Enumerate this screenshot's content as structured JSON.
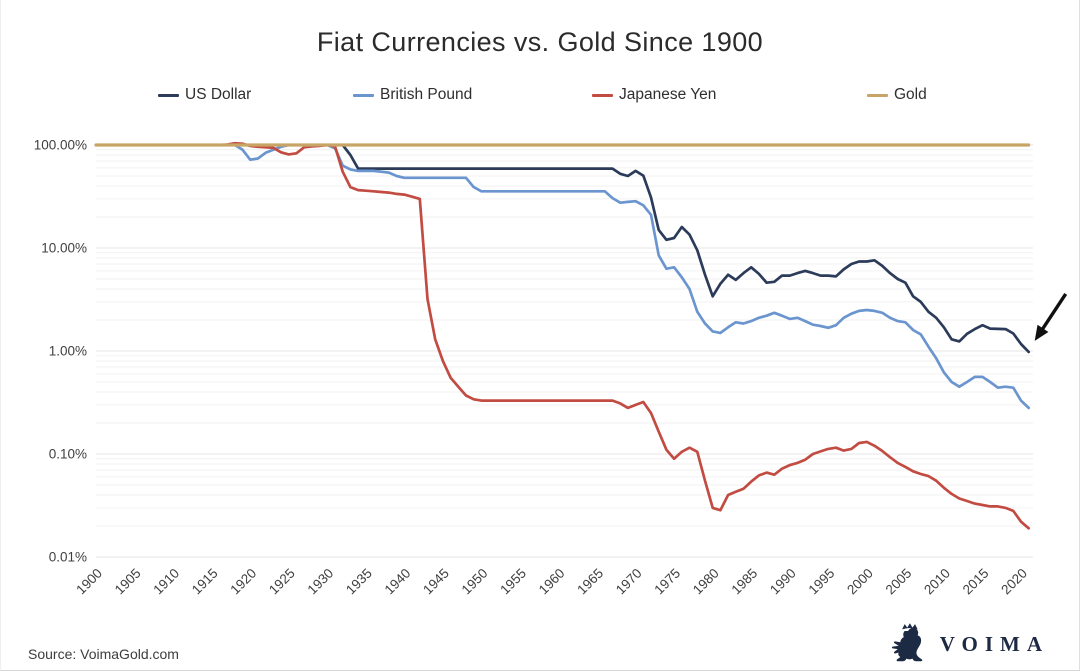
{
  "title": "Fiat Currencies vs. Gold Since 1900",
  "source": "Source: VoimaGold.com",
  "logo": {
    "text": "VOIMA",
    "icon": "rampant-lion-crest",
    "color": "#1d2a44"
  },
  "colors": {
    "us_dollar": "#2b3b59",
    "british_pound": "#6b95cf",
    "japanese_yen": "#c24b42",
    "gold": "#c9a467",
    "grid_major": "#e4e4e4",
    "grid_minor": "#f2f2f2",
    "text": "#3f3f3f",
    "annotation": "#111111"
  },
  "legend": {
    "items": [
      {
        "label": "US Dollar",
        "color": "#2b3b59"
      },
      {
        "label": "British Pound",
        "color": "#6b95cf"
      },
      {
        "label": "Japanese Yen",
        "color": "#c24b42"
      },
      {
        "label": "Gold",
        "color": "#c9a467"
      }
    ]
  },
  "annotation": {
    "type": "arrow",
    "target": "US Dollar endpoint at ~1% in 2020-2021",
    "color": "#111111"
  },
  "chart_data": {
    "type": "line",
    "title": "Fiat Currencies vs. Gold Since 1900",
    "xlabel": "",
    "ylabel": "",
    "x_axis": {
      "tick_years": [
        1900,
        1905,
        1910,
        1915,
        1920,
        1925,
        1930,
        1935,
        1940,
        1945,
        1950,
        1955,
        1960,
        1965,
        1970,
        1975,
        1980,
        1985,
        1990,
        1995,
        2000,
        2005,
        2010,
        2015,
        2020
      ],
      "range": [
        1900,
        2021.5
      ]
    },
    "y_axis": {
      "scale": "log",
      "tick_labels": [
        "100.00%",
        "10.00%",
        "1.00%",
        "0.10%",
        "0.01%"
      ],
      "tick_values": [
        100,
        10,
        1,
        0.1,
        0.01
      ],
      "unit": "% of 1900 value vs. gold"
    },
    "grid": "horizontal-only",
    "legend_position": "top",
    "series": [
      {
        "name": "US Dollar",
        "color": "#2b3b59",
        "width": 2.7,
        "points": [
          [
            1900,
            100
          ],
          [
            1932,
            100
          ],
          [
            1933,
            80
          ],
          [
            1934,
            59
          ],
          [
            1967,
            59
          ],
          [
            1968,
            52.5
          ],
          [
            1969,
            50
          ],
          [
            1970,
            56
          ],
          [
            1971,
            50.5
          ],
          [
            1972,
            31
          ],
          [
            1973,
            15
          ],
          [
            1974,
            12
          ],
          [
            1975,
            12.5
          ],
          [
            1976,
            16
          ],
          [
            1977,
            13.5
          ],
          [
            1978,
            9.5
          ],
          [
            1979,
            5.5
          ],
          [
            1980,
            3.4
          ],
          [
            1981,
            4.5
          ],
          [
            1982,
            5.5
          ],
          [
            1983,
            4.9
          ],
          [
            1984,
            5.7
          ],
          [
            1985,
            6.5
          ],
          [
            1986,
            5.6
          ],
          [
            1987,
            4.6
          ],
          [
            1988,
            4.7
          ],
          [
            1989,
            5.4
          ],
          [
            1990,
            5.4
          ],
          [
            1991,
            5.7
          ],
          [
            1992,
            6.0
          ],
          [
            1993,
            5.7
          ],
          [
            1994,
            5.4
          ],
          [
            1995,
            5.4
          ],
          [
            1996,
            5.3
          ],
          [
            1997,
            6.2
          ],
          [
            1998,
            7.0
          ],
          [
            1999,
            7.4
          ],
          [
            2000,
            7.4
          ],
          [
            2001,
            7.6
          ],
          [
            2002,
            6.7
          ],
          [
            2003,
            5.7
          ],
          [
            2004,
            5.0
          ],
          [
            2005,
            4.6
          ],
          [
            2006,
            3.4
          ],
          [
            2007,
            3.0
          ],
          [
            2008,
            2.4
          ],
          [
            2009,
            2.1
          ],
          [
            2010,
            1.7
          ],
          [
            2011,
            1.3
          ],
          [
            2012,
            1.24
          ],
          [
            2013,
            1.47
          ],
          [
            2014,
            1.63
          ],
          [
            2015,
            1.78
          ],
          [
            2016,
            1.65
          ],
          [
            2017,
            1.64
          ],
          [
            2018,
            1.63
          ],
          [
            2019,
            1.48
          ],
          [
            2020,
            1.17
          ],
          [
            2021,
            0.98
          ]
        ]
      },
      {
        "name": "British Pound",
        "color": "#6b95cf",
        "width": 2.7,
        "points": [
          [
            1900,
            100
          ],
          [
            1918,
            100
          ],
          [
            1919,
            90
          ],
          [
            1920,
            72
          ],
          [
            1921,
            74
          ],
          [
            1922,
            84
          ],
          [
            1923,
            90
          ],
          [
            1924,
            96
          ],
          [
            1925,
            100
          ],
          [
            1930,
            100
          ],
          [
            1931,
            93
          ],
          [
            1932,
            63
          ],
          [
            1933,
            58
          ],
          [
            1934,
            56
          ],
          [
            1936,
            56
          ],
          [
            1937,
            55
          ],
          [
            1938,
            54
          ],
          [
            1939,
            50
          ],
          [
            1940,
            48
          ],
          [
            1948,
            48
          ],
          [
            1949,
            39
          ],
          [
            1950,
            35.5
          ],
          [
            1966,
            35.5
          ],
          [
            1967,
            30.5
          ],
          [
            1968,
            27.5
          ],
          [
            1969,
            28
          ],
          [
            1970,
            28.5
          ],
          [
            1971,
            26
          ],
          [
            1972,
            21
          ],
          [
            1973,
            8.5
          ],
          [
            1974,
            6.3
          ],
          [
            1975,
            6.5
          ],
          [
            1976,
            5.2
          ],
          [
            1977,
            4.0
          ],
          [
            1978,
            2.4
          ],
          [
            1979,
            1.85
          ],
          [
            1980,
            1.55
          ],
          [
            1981,
            1.5
          ],
          [
            1982,
            1.7
          ],
          [
            1983,
            1.9
          ],
          [
            1984,
            1.85
          ],
          [
            1985,
            1.95
          ],
          [
            1986,
            2.1
          ],
          [
            1987,
            2.2
          ],
          [
            1988,
            2.35
          ],
          [
            1989,
            2.2
          ],
          [
            1990,
            2.05
          ],
          [
            1991,
            2.1
          ],
          [
            1992,
            1.95
          ],
          [
            1993,
            1.8
          ],
          [
            1994,
            1.75
          ],
          [
            1995,
            1.68
          ],
          [
            1996,
            1.78
          ],
          [
            1997,
            2.1
          ],
          [
            1998,
            2.3
          ],
          [
            1999,
            2.45
          ],
          [
            2000,
            2.5
          ],
          [
            2001,
            2.45
          ],
          [
            2002,
            2.35
          ],
          [
            2003,
            2.1
          ],
          [
            2004,
            1.95
          ],
          [
            2005,
            1.9
          ],
          [
            2006,
            1.6
          ],
          [
            2007,
            1.45
          ],
          [
            2008,
            1.1
          ],
          [
            2009,
            0.85
          ],
          [
            2010,
            0.62
          ],
          [
            2011,
            0.5
          ],
          [
            2012,
            0.45
          ],
          [
            2013,
            0.5
          ],
          [
            2014,
            0.56
          ],
          [
            2015,
            0.56
          ],
          [
            2016,
            0.5
          ],
          [
            2017,
            0.44
          ],
          [
            2018,
            0.45
          ],
          [
            2019,
            0.44
          ],
          [
            2020,
            0.33
          ],
          [
            2021,
            0.28
          ]
        ]
      },
      {
        "name": "Japanese Yen",
        "color": "#c24b42",
        "width": 2.7,
        "points": [
          [
            1900,
            100
          ],
          [
            1916,
            100
          ],
          [
            1917,
            101
          ],
          [
            1918,
            104
          ],
          [
            1919,
            103
          ],
          [
            1920,
            98
          ],
          [
            1921,
            96
          ],
          [
            1922,
            95
          ],
          [
            1923,
            94
          ],
          [
            1924,
            85
          ],
          [
            1925,
            81
          ],
          [
            1926,
            83
          ],
          [
            1927,
            95
          ],
          [
            1928,
            97
          ],
          [
            1929,
            98
          ],
          [
            1930,
            100
          ],
          [
            1931,
            97
          ],
          [
            1932,
            55
          ],
          [
            1933,
            39
          ],
          [
            1934,
            36.5
          ],
          [
            1935,
            36
          ],
          [
            1936,
            35.5
          ],
          [
            1937,
            35
          ],
          [
            1938,
            34.5
          ],
          [
            1939,
            33.5
          ],
          [
            1940,
            33
          ],
          [
            1941,
            31.5
          ],
          [
            1942,
            30
          ],
          [
            1943,
            3.2
          ],
          [
            1944,
            1.3
          ],
          [
            1945,
            0.8
          ],
          [
            1946,
            0.55
          ],
          [
            1947,
            0.45
          ],
          [
            1948,
            0.37
          ],
          [
            1949,
            0.34
          ],
          [
            1950,
            0.33
          ],
          [
            1967,
            0.33
          ],
          [
            1968,
            0.31
          ],
          [
            1969,
            0.28
          ],
          [
            1970,
            0.3
          ],
          [
            1971,
            0.32
          ],
          [
            1972,
            0.25
          ],
          [
            1973,
            0.165
          ],
          [
            1974,
            0.11
          ],
          [
            1975,
            0.09
          ],
          [
            1976,
            0.105
          ],
          [
            1977,
            0.115
          ],
          [
            1978,
            0.105
          ],
          [
            1979,
            0.055
          ],
          [
            1980,
            0.03
          ],
          [
            1981,
            0.0285
          ],
          [
            1982,
            0.04
          ],
          [
            1983,
            0.043
          ],
          [
            1984,
            0.046
          ],
          [
            1985,
            0.054
          ],
          [
            1986,
            0.062
          ],
          [
            1987,
            0.066
          ],
          [
            1988,
            0.063
          ],
          [
            1989,
            0.072
          ],
          [
            1990,
            0.078
          ],
          [
            1991,
            0.082
          ],
          [
            1992,
            0.088
          ],
          [
            1993,
            0.1
          ],
          [
            1994,
            0.106
          ],
          [
            1995,
            0.112
          ],
          [
            1996,
            0.115
          ],
          [
            1997,
            0.108
          ],
          [
            1998,
            0.112
          ],
          [
            1999,
            0.128
          ],
          [
            2000,
            0.131
          ],
          [
            2001,
            0.12
          ],
          [
            2002,
            0.107
          ],
          [
            2003,
            0.093
          ],
          [
            2004,
            0.082
          ],
          [
            2005,
            0.075
          ],
          [
            2006,
            0.068
          ],
          [
            2007,
            0.064
          ],
          [
            2008,
            0.061
          ],
          [
            2009,
            0.055
          ],
          [
            2010,
            0.047
          ],
          [
            2011,
            0.041
          ],
          [
            2012,
            0.037
          ],
          [
            2013,
            0.035
          ],
          [
            2014,
            0.033
          ],
          [
            2015,
            0.032
          ],
          [
            2016,
            0.031
          ],
          [
            2017,
            0.031
          ],
          [
            2018,
            0.03
          ],
          [
            2019,
            0.028
          ],
          [
            2020,
            0.022
          ],
          [
            2021,
            0.019
          ]
        ]
      },
      {
        "name": "Gold",
        "color": "#c9a467",
        "width": 3.2,
        "points": [
          [
            1900,
            100
          ],
          [
            2021,
            100
          ]
        ]
      }
    ]
  }
}
